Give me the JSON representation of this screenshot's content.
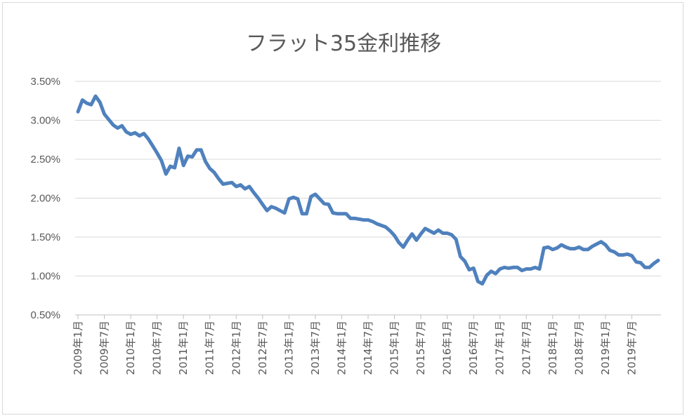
{
  "chart_data": {
    "type": "line",
    "title": "フラット35金利推移",
    "xlabel": "",
    "ylabel": "",
    "ylim": [
      0.005,
      0.035
    ],
    "yticks": [
      {
        "value": 0.005,
        "label": "0.50%"
      },
      {
        "value": 0.01,
        "label": "1.00%"
      },
      {
        "value": 0.015,
        "label": "1.50%"
      },
      {
        "value": 0.02,
        "label": "2.00%"
      },
      {
        "value": 0.025,
        "label": "2.50%"
      },
      {
        "value": 0.03,
        "label": "3.00%"
      },
      {
        "value": 0.035,
        "label": "3.50%"
      }
    ],
    "xticks": [
      {
        "index": 0,
        "label": "2009年1月"
      },
      {
        "index": 6,
        "label": "2009年7月"
      },
      {
        "index": 12,
        "label": "2010年1月"
      },
      {
        "index": 18,
        "label": "2010年7月"
      },
      {
        "index": 24,
        "label": "2011年1月"
      },
      {
        "index": 30,
        "label": "2011年7月"
      },
      {
        "index": 36,
        "label": "2012年1月"
      },
      {
        "index": 42,
        "label": "2012年7月"
      },
      {
        "index": 48,
        "label": "2013年1月"
      },
      {
        "index": 54,
        "label": "2013年7月"
      },
      {
        "index": 60,
        "label": "2014年1月"
      },
      {
        "index": 66,
        "label": "2014年7月"
      },
      {
        "index": 72,
        "label": "2015年1月"
      },
      {
        "index": 78,
        "label": "2015年7月"
      },
      {
        "index": 84,
        "label": "2016年1月"
      },
      {
        "index": 90,
        "label": "2016年7月"
      },
      {
        "index": 96,
        "label": "2017年1月"
      },
      {
        "index": 102,
        "label": "2017年7月"
      },
      {
        "index": 108,
        "label": "2018年1月"
      },
      {
        "index": 114,
        "label": "2018年7月"
      },
      {
        "index": 120,
        "label": "2019年1月"
      },
      {
        "index": 126,
        "label": "2019年7月"
      }
    ],
    "grid": true,
    "legend": "none",
    "series": [
      {
        "color": "#4f81bd",
        "values": [
          0.0311,
          0.0326,
          0.0322,
          0.032,
          0.0331,
          0.0323,
          0.0308,
          0.0301,
          0.0294,
          0.029,
          0.0293,
          0.0285,
          0.0282,
          0.0284,
          0.028,
          0.0283,
          0.0276,
          0.0267,
          0.0258,
          0.0248,
          0.0231,
          0.0241,
          0.0239,
          0.0264,
          0.0242,
          0.0254,
          0.0253,
          0.0262,
          0.0262,
          0.0247,
          0.0238,
          0.0233,
          0.0225,
          0.0218,
          0.0219,
          0.022,
          0.0215,
          0.0217,
          0.0212,
          0.0215,
          0.0207,
          0.02,
          0.0192,
          0.0184,
          0.0189,
          0.0187,
          0.0184,
          0.0181,
          0.0199,
          0.0201,
          0.0199,
          0.018,
          0.018,
          0.0202,
          0.0205,
          0.0199,
          0.0193,
          0.0192,
          0.0181,
          0.018,
          0.018,
          0.018,
          0.0174,
          0.0174,
          0.0173,
          0.0172,
          0.0172,
          0.017,
          0.0167,
          0.0165,
          0.0163,
          0.0158,
          0.0152,
          0.0143,
          0.0137,
          0.0146,
          0.0154,
          0.0146,
          0.0154,
          0.0161,
          0.0158,
          0.0155,
          0.0159,
          0.0155,
          0.0155,
          0.0153,
          0.0147,
          0.0125,
          0.0119,
          0.0108,
          0.011,
          0.0093,
          0.009,
          0.0101,
          0.0106,
          0.0103,
          0.0109,
          0.0111,
          0.011,
          0.0111,
          0.0111,
          0.0107,
          0.0109,
          0.0109,
          0.0111,
          0.0109,
          0.0136,
          0.0137,
          0.0134,
          0.0136,
          0.014,
          0.0137,
          0.0135,
          0.0135,
          0.0137,
          0.0134,
          0.0134,
          0.0138,
          0.0141,
          0.0144,
          0.014,
          0.0133,
          0.0131,
          0.0127,
          0.0127,
          0.0128,
          0.0126,
          0.0118,
          0.0117,
          0.0111,
          0.0111,
          0.0116,
          0.012
        ]
      }
    ]
  }
}
